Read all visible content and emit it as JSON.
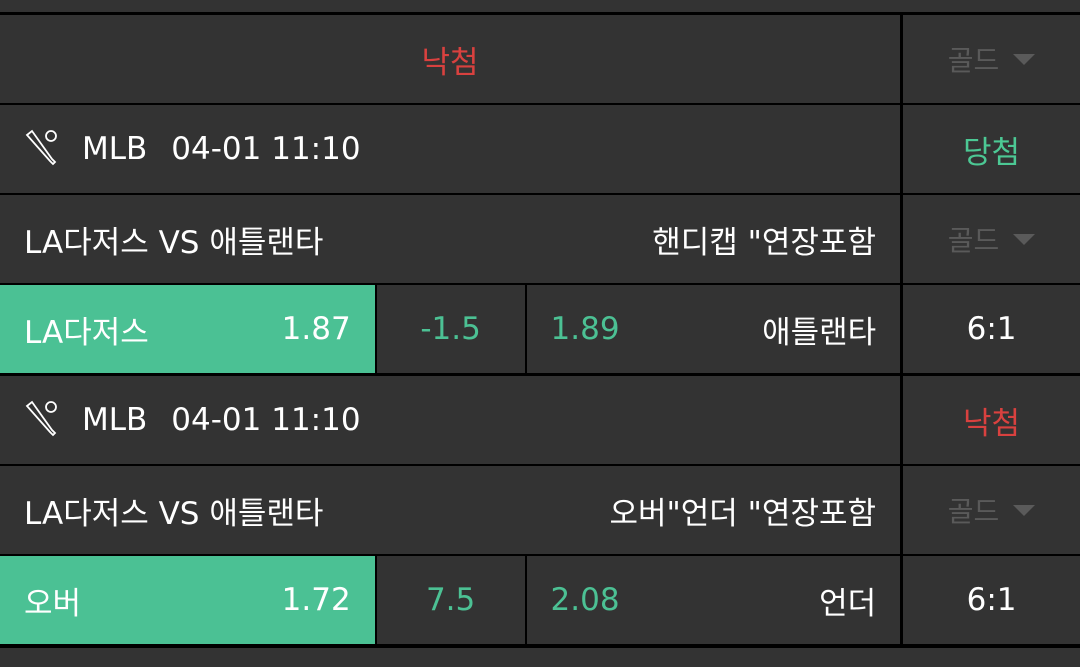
{
  "header": {
    "status": "낙첨",
    "gold_label": "골드"
  },
  "bets": [
    {
      "league": "MLB",
      "datetime": "04-01 11:10",
      "result": "당첨",
      "result_color": "#4cc894",
      "match": "LA다저스 VS 애틀랜타",
      "market": "핸디캡 \"연장포함",
      "gold_label": "골드",
      "home": "LA다저스",
      "home_odds": "1.87",
      "line": "-1.5",
      "away_odds": "1.89",
      "away": "애틀랜타",
      "score": "6:1"
    },
    {
      "league": "MLB",
      "datetime": "04-01 11:10",
      "result": "낙첨",
      "result_color": "#d9413f",
      "match": "LA다저스 VS 애틀랜타",
      "market": "오버\"언더 \"연장포함",
      "gold_label": "골드",
      "home": "오버",
      "home_odds": "1.72",
      "line": "7.5",
      "away_odds": "2.08",
      "away": "언더",
      "score": "6:1"
    }
  ],
  "icons": {
    "sport": "baseball-bat-ball-icon",
    "dropdown": "triangle-down-icon"
  }
}
